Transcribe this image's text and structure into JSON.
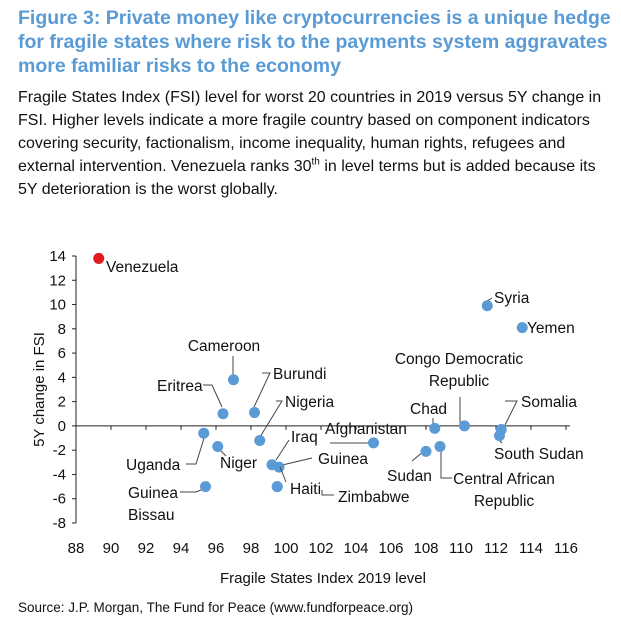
{
  "figure": {
    "title": "Figure 3: Private money like cryptocurrencies is a unique hedge for fragile states where risk to the payments system aggravates more familiar risks to the economy",
    "desc_pre": "Fragile States Index (FSI) level for worst 20 countries in 2019 versus 5Y change in FSI. Higher levels indicate a more fragile country based on component indicators covering security, factionalism, income inequality, human rights, refugees and external intervention. Venezuela ranks 30",
    "desc_sup": "th",
    "desc_post": " in level terms but is added because its 5Y deterioration is the worst globally.",
    "source": "Source: J.P. Morgan, The Fund for Peace (www.fundforpeace.org)"
  },
  "chart_data": {
    "type": "scatter",
    "xlabel": "Fragile States Index 2019 level",
    "ylabel": "5Y change in FSI",
    "xlim": [
      88,
      116
    ],
    "ylim": [
      -8,
      14
    ],
    "xticks": [
      88,
      90,
      92,
      94,
      96,
      98,
      100,
      102,
      104,
      106,
      108,
      110,
      112,
      114,
      116
    ],
    "yticks": [
      14,
      12,
      10,
      8,
      6,
      4,
      2,
      0,
      -2,
      -4,
      -6,
      -8
    ],
    "colors": {
      "default": "#5b9bd5",
      "highlight": "#e31a1c"
    },
    "points": [
      {
        "name": "Venezuela",
        "label": [
          "Venezuela"
        ],
        "x": 89.3,
        "y": 13.8,
        "highlight": true
      },
      {
        "name": "Syria",
        "label": [
          "Syria"
        ],
        "x": 111.5,
        "y": 9.9
      },
      {
        "name": "Yemen",
        "label": [
          "Yemen"
        ],
        "x": 113.5,
        "y": 8.1
      },
      {
        "name": "Cameroon",
        "label": [
          "Cameroon"
        ],
        "x": 97.0,
        "y": 3.8
      },
      {
        "name": "Eritrea",
        "label": [
          "Eritrea"
        ],
        "x": 96.4,
        "y": 1.0
      },
      {
        "name": "Burundi",
        "label": [
          "Burundi"
        ],
        "x": 98.2,
        "y": 1.1
      },
      {
        "name": "Nigeria",
        "label": [
          "Nigeria"
        ],
        "x": 98.5,
        "y": -1.2
      },
      {
        "name": "Congo Democratic Republic",
        "label": [
          "Congo Democratic",
          "Republic"
        ],
        "x": 110.2,
        "y": 0.0
      },
      {
        "name": "Chad",
        "label": [
          "Chad"
        ],
        "x": 108.5,
        "y": -0.2
      },
      {
        "name": "Somalia",
        "label": [
          "Somalia"
        ],
        "x": 112.3,
        "y": -0.3
      },
      {
        "name": "South Sudan",
        "label": [
          "South Sudan"
        ],
        "x": 112.2,
        "y": -0.8
      },
      {
        "name": "Afghanistan",
        "label": [
          "Afghanistan"
        ],
        "x": 105.0,
        "y": -1.4
      },
      {
        "name": "Iraq",
        "label": [
          "Iraq"
        ],
        "x": 99.2,
        "y": -3.2
      },
      {
        "name": "Guinea",
        "label": [
          "Guinea"
        ],
        "x": 99.6,
        "y": -3.4
      },
      {
        "name": "Uganda",
        "label": [
          "Uganda"
        ],
        "x": 95.3,
        "y": -0.6
      },
      {
        "name": "Niger",
        "label": [
          "Niger"
        ],
        "x": 96.1,
        "y": -1.7
      },
      {
        "name": "Sudan",
        "label": [
          "Sudan"
        ],
        "x": 108.0,
        "y": -2.1
      },
      {
        "name": "Central African Republic",
        "label": [
          "Central African",
          "Republic"
        ],
        "x": 108.8,
        "y": -1.7
      },
      {
        "name": "Haiti",
        "label": [
          "Haiti"
        ],
        "x": 99.5,
        "y": -5.0
      },
      {
        "name": "Zimbabwe",
        "label": [
          "Zimbabwe"
        ],
        "x": 99.5,
        "y": -5.0
      },
      {
        "name": "Guinea Bissau",
        "label": [
          "Guinea",
          "Bissau"
        ],
        "x": 95.4,
        "y": -5.0
      }
    ]
  }
}
